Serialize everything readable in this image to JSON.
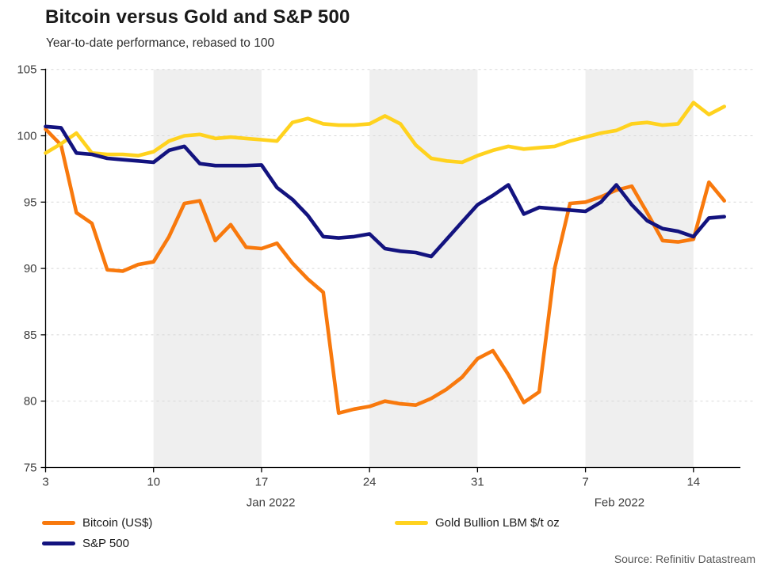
{
  "header": {
    "title": "Bitcoin versus Gold and S&P 500",
    "subtitle": "Year-to-date performance, rebased to 100"
  },
  "source": "Source: Refinitiv Datastream",
  "legend": [
    {
      "label": "Bitcoin (US$)",
      "color": "#f8790d"
    },
    {
      "label": "S&P 500",
      "color": "#13137f"
    },
    {
      "label": "Gold Bullion LBM $/t oz",
      "color": "#ffd21e"
    }
  ],
  "chart_data": {
    "type": "line",
    "title": "Bitcoin versus Gold and S&P 500",
    "subtitle": "Year-to-date performance, rebased to 100",
    "xlabel": "",
    "ylabel": "",
    "x": [
      "Jan 3",
      "Jan 4",
      "Jan 5",
      "Jan 6",
      "Jan 7",
      "Jan 8",
      "Jan 9",
      "Jan 10",
      "Jan 11",
      "Jan 12",
      "Jan 13",
      "Jan 14",
      "Jan 15",
      "Jan 16",
      "Jan 17",
      "Jan 18",
      "Jan 19",
      "Jan 20",
      "Jan 21",
      "Jan 22",
      "Jan 23",
      "Jan 24",
      "Jan 25",
      "Jan 26",
      "Jan 27",
      "Jan 28",
      "Jan 29",
      "Jan 30",
      "Jan 31",
      "Feb 1",
      "Feb 2",
      "Feb 3",
      "Feb 4",
      "Feb 5",
      "Feb 6",
      "Feb 7",
      "Feb 8",
      "Feb 9",
      "Feb 10",
      "Feb 11",
      "Feb 12",
      "Feb 13",
      "Feb 14",
      "Feb 15",
      "Feb 16"
    ],
    "series": [
      {
        "name": "Bitcoin (US$)",
        "color": "#f8790d",
        "values": [
          100.5,
          99.3,
          94.2,
          93.4,
          89.9,
          89.8,
          90.3,
          90.5,
          92.4,
          94.9,
          95.1,
          92.1,
          93.3,
          91.6,
          91.5,
          91.9,
          90.4,
          89.2,
          88.2,
          79.1,
          79.4,
          79.6,
          80.0,
          79.8,
          79.7,
          80.2,
          80.9,
          81.8,
          83.2,
          83.8,
          82.0,
          79.9,
          80.7,
          90.0,
          94.9,
          95.0,
          95.4,
          95.9,
          96.2,
          94.2,
          92.1,
          92.0,
          92.2,
          96.5,
          95.1
        ]
      },
      {
        "name": "Gold Bullion LBM $/t oz",
        "color": "#ffd21e",
        "values": [
          98.7,
          99.4,
          100.2,
          98.7,
          98.6,
          98.6,
          98.5,
          98.8,
          99.6,
          100.0,
          100.1,
          99.8,
          99.9,
          99.8,
          99.7,
          99.6,
          101.0,
          101.3,
          100.9,
          100.8,
          100.8,
          100.9,
          101.5,
          100.9,
          99.3,
          98.3,
          98.1,
          98.0,
          98.5,
          98.9,
          99.2,
          99.0,
          99.1,
          99.2,
          99.6,
          99.9,
          100.2,
          100.4,
          100.9,
          101.0,
          100.8,
          100.9,
          102.5,
          101.6,
          102.2
        ]
      },
      {
        "name": "S&P 500",
        "color": "#13137f",
        "values": [
          100.7,
          100.6,
          98.7,
          98.6,
          98.3,
          98.2,
          98.1,
          98.0,
          98.9,
          99.2,
          97.9,
          97.75,
          97.75,
          97.75,
          97.8,
          96.1,
          95.2,
          94.0,
          92.4,
          92.3,
          92.4,
          92.6,
          91.5,
          91.3,
          91.2,
          90.9,
          92.2,
          93.5,
          94.8,
          95.5,
          96.3,
          94.1,
          94.6,
          94.5,
          94.4,
          94.3,
          95.0,
          96.3,
          94.8,
          93.6,
          93.0,
          92.8,
          92.4,
          93.8,
          93.9
        ]
      }
    ],
    "y_axis": {
      "min": 75,
      "max": 105,
      "ticks": [
        75,
        80,
        85,
        90,
        95,
        100,
        105
      ],
      "grid": true
    },
    "x_axis": {
      "ticks": [
        {
          "label": "3",
          "day": 0
        },
        {
          "label": "10",
          "day": 7
        },
        {
          "label": "17",
          "day": 14
        },
        {
          "label": "24",
          "day": 21
        },
        {
          "label": "31",
          "day": 28
        },
        {
          "label": "7",
          "day": 35
        },
        {
          "label": "14",
          "day": 42
        }
      ],
      "months": [
        {
          "label": "Jan 2022",
          "day": 14.6
        },
        {
          "label": "Feb 2022",
          "day": 37.2
        }
      ]
    },
    "shaded_bands": [
      [
        7,
        14
      ],
      [
        21,
        28
      ],
      [
        35,
        42
      ]
    ],
    "style": {
      "band_color": "#efefef",
      "grid_color": "#d8d8d8",
      "axis_color": "#000000",
      "tick_label_color": "#3d3d3d"
    },
    "legend_position": "bottom"
  }
}
